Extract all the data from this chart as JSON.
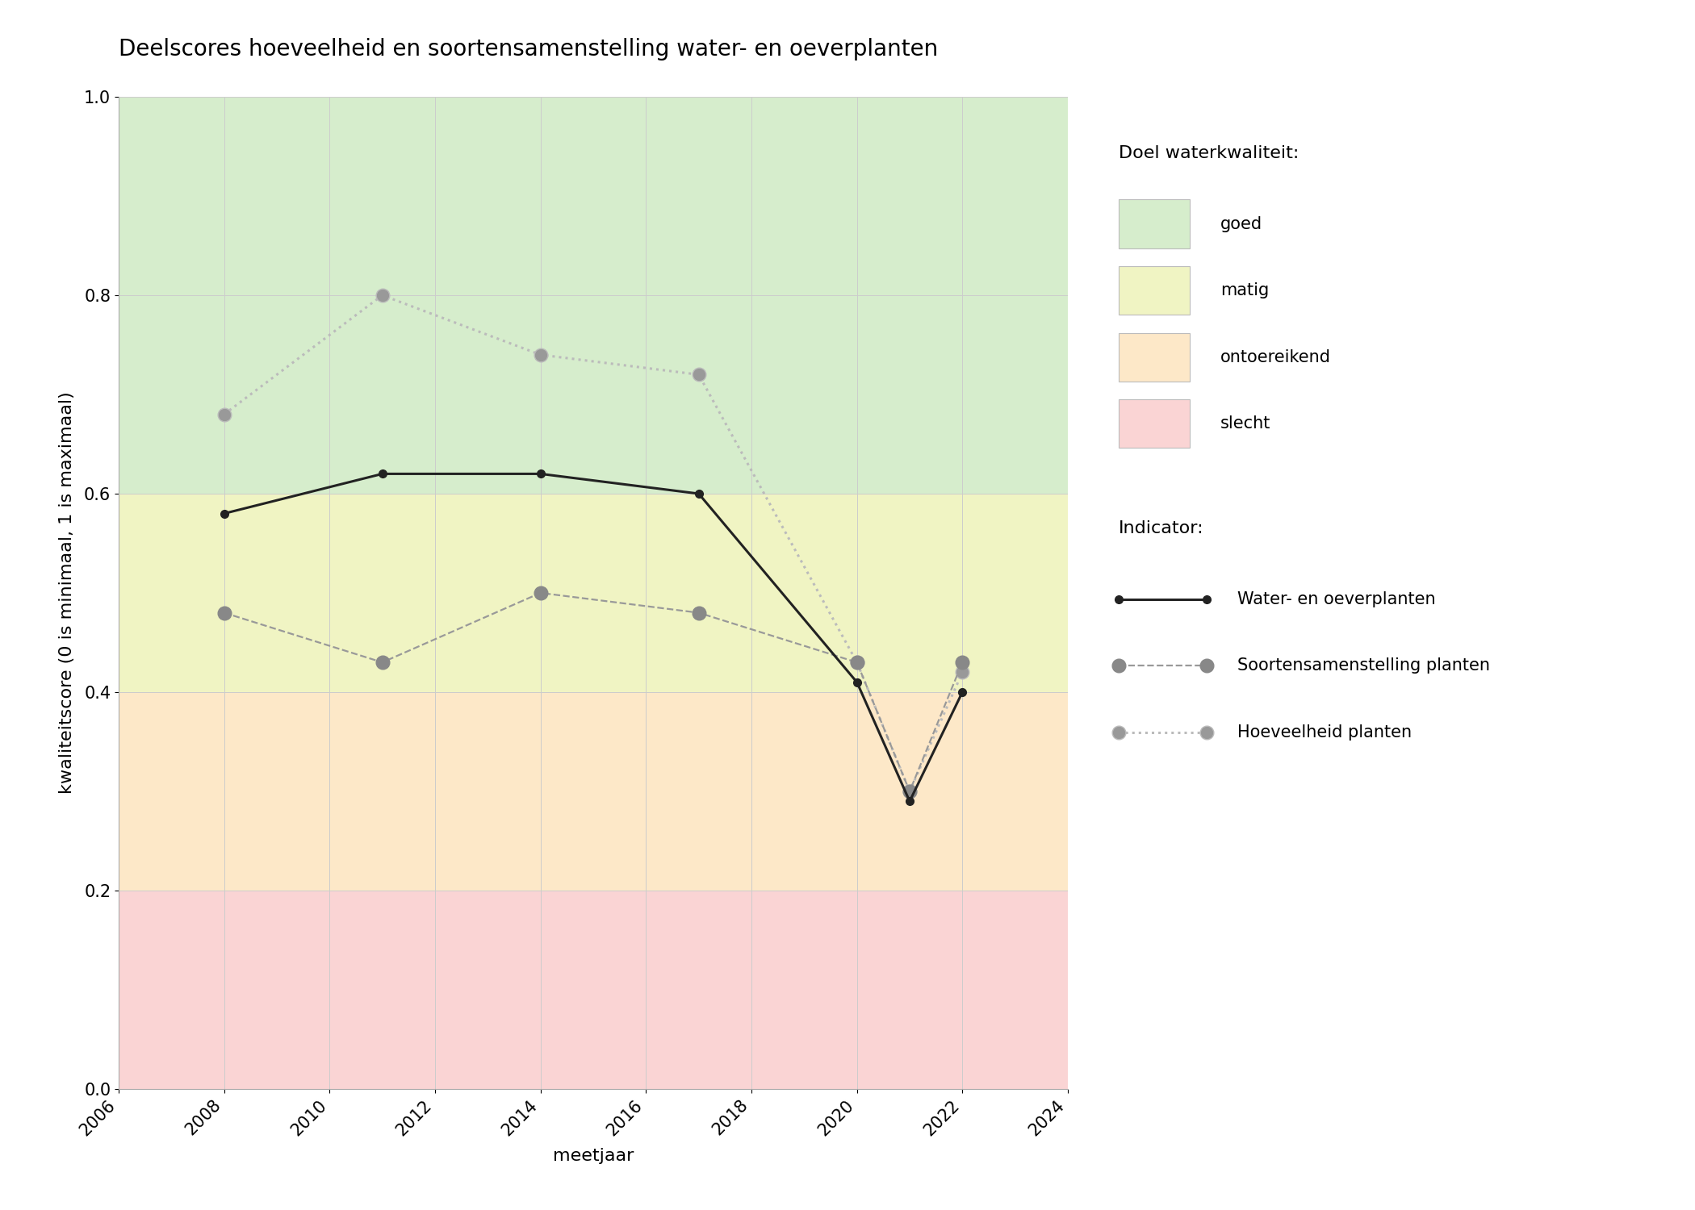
{
  "title": "Deelscores hoeveelheid en soortensamenstelling water- en oeverplanten",
  "xlabel": "meetjaar",
  "ylabel": "kwaliteitscore (0 is minimaal, 1 is maximaal)",
  "xlim": [
    2006,
    2024
  ],
  "ylim": [
    0.0,
    1.0
  ],
  "xticks": [
    2006,
    2008,
    2010,
    2012,
    2014,
    2016,
    2018,
    2020,
    2022,
    2024
  ],
  "yticks": [
    0.0,
    0.2,
    0.4,
    0.6,
    0.8,
    1.0
  ],
  "zones": [
    {
      "name": "goed",
      "ymin": 0.6,
      "ymax": 1.0,
      "color": "#d6edcc"
    },
    {
      "name": "matig",
      "ymin": 0.4,
      "ymax": 0.6,
      "color": "#f0f4c3"
    },
    {
      "name": "ontoereikend",
      "ymin": 0.2,
      "ymax": 0.4,
      "color": "#fde8c8"
    },
    {
      "name": "slecht",
      "ymin": 0.0,
      "ymax": 0.2,
      "color": "#fad4d4"
    }
  ],
  "line_water_oever": {
    "years": [
      2008,
      2011,
      2014,
      2017,
      2020,
      2021,
      2022
    ],
    "values": [
      0.58,
      0.62,
      0.62,
      0.6,
      0.41,
      0.29,
      0.4
    ],
    "color": "#222222",
    "linestyle": "solid",
    "linewidth": 2.2,
    "marker": "o",
    "markersize": 7,
    "marker_facecolor": "#222222",
    "marker_edgecolor": "#222222",
    "label": "Water- en oeverplanten"
  },
  "line_soortensamenstelling": {
    "years": [
      2008,
      2011,
      2014,
      2017,
      2020,
      2021,
      2022
    ],
    "values": [
      0.48,
      0.43,
      0.5,
      0.48,
      0.43,
      0.3,
      0.43
    ],
    "color": "#999999",
    "linestyle": "dashed",
    "linewidth": 1.6,
    "marker": "o",
    "markersize": 12,
    "marker_facecolor": "#888888",
    "marker_edgecolor": "#888888",
    "label": "Soortensamenstelling planten"
  },
  "line_hoeveelheid": {
    "years": [
      2008,
      2011,
      2014,
      2017,
      2020,
      2021,
      2022
    ],
    "values": [
      0.68,
      0.8,
      0.74,
      0.72,
      0.43,
      0.3,
      0.42
    ],
    "color": "#bbbbbb",
    "linestyle": "dotted",
    "linewidth": 2.2,
    "marker": "o",
    "markersize": 12,
    "marker_facecolor": "#999999",
    "marker_edgecolor": "#bbbbbb",
    "label": "Hoeveelheid planten"
  },
  "legend_doel_title": "Doel waterkwaliteit:",
  "legend_indicator_title": "Indicator:",
  "legend_doel_items": [
    {
      "label": "goed",
      "color": "#d6edcc"
    },
    {
      "label": "matig",
      "color": "#f0f4c3"
    },
    {
      "label": "ontoereikend",
      "color": "#fde8c8"
    },
    {
      "label": "slecht",
      "color": "#fad4d4"
    }
  ],
  "grid_color": "#cccccc",
  "grid_linewidth": 0.7,
  "title_fontsize": 20,
  "axis_label_fontsize": 16,
  "tick_fontsize": 15,
  "legend_title_fontsize": 16,
  "legend_item_fontsize": 15
}
